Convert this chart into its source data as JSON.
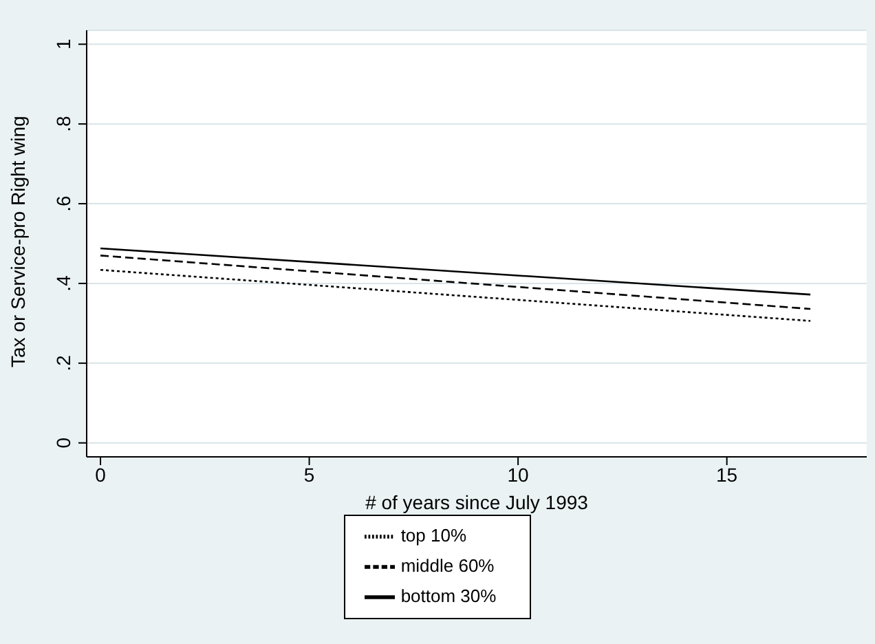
{
  "chart_data": {
    "type": "line",
    "xlabel": "# of years since July 1993",
    "ylabel": "Tax or Service-pro Right wing",
    "x": [
      0,
      17
    ],
    "series": [
      {
        "name": "top 10%",
        "color": "#000000",
        "line_style": "dotted",
        "values": [
          0.434,
          0.306
        ]
      },
      {
        "name": "middle 60%",
        "color": "#000000",
        "line_style": "dashed",
        "values": [
          0.47,
          0.336
        ]
      },
      {
        "name": "bottom 30%",
        "color": "#000000",
        "line_style": "solid",
        "values": [
          0.488,
          0.372
        ]
      }
    ],
    "xlim": [
      -0.33,
      18.35
    ],
    "xticks": [
      0,
      5,
      10,
      15
    ],
    "ylim": [
      -0.035,
      1.035
    ],
    "yticks": [
      {
        "value": 0,
        "label": "0"
      },
      {
        "value": 0.2,
        "label": ".2"
      },
      {
        "value": 0.4,
        "label": ".4"
      },
      {
        "value": 0.6,
        "label": ".6"
      },
      {
        "value": 0.8,
        "label": ".8"
      },
      {
        "value": 1,
        "label": "1"
      }
    ],
    "grid": "y",
    "legend": "bottom",
    "marker": "none"
  }
}
